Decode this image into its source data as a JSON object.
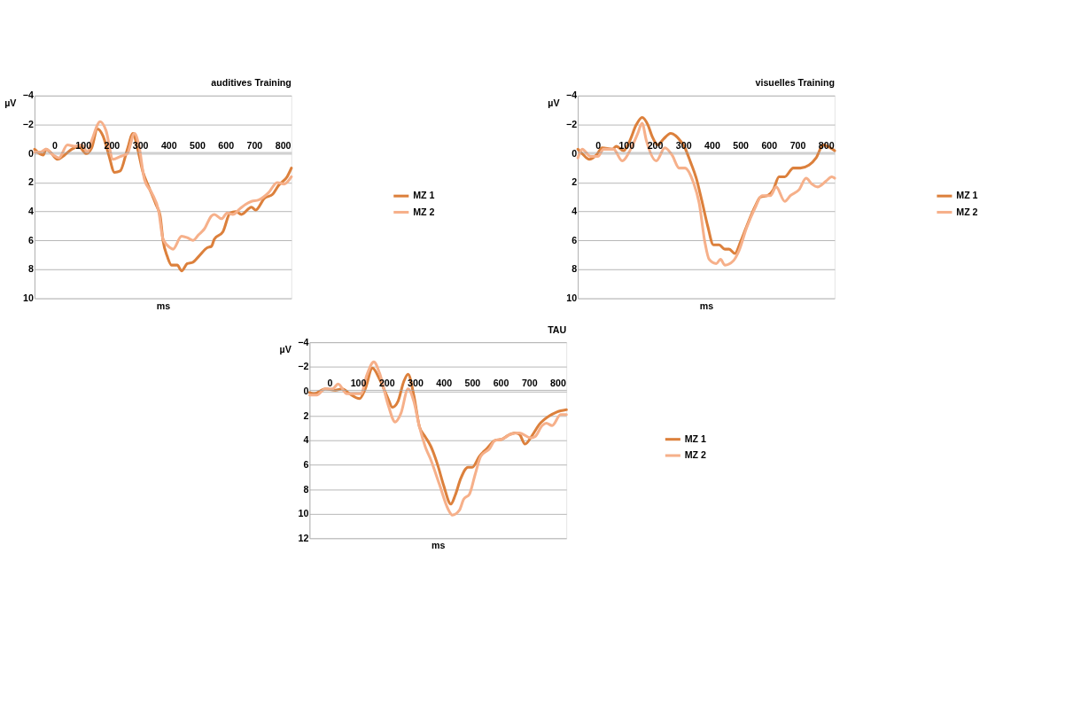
{
  "chart_data": [
    {
      "type": "line",
      "title": "auditives Training",
      "xlabel": "ms",
      "ylabel": "µV",
      "xlim": [
        -70,
        830
      ],
      "xticks": [
        0,
        100,
        200,
        300,
        400,
        500,
        600,
        700,
        800
      ],
      "ylim": [
        10,
        -4
      ],
      "yticks": [
        -4,
        -2,
        0,
        2,
        4,
        6,
        8,
        10
      ],
      "grid": "y",
      "legend": "right",
      "series": [
        {
          "name": "MZ 1",
          "color": "#dc803c",
          "x": [
            -70,
            -40,
            -30,
            -15,
            10,
            35,
            60,
            85,
            110,
            130,
            150,
            170,
            190,
            210,
            230,
            255,
            275,
            290,
            310,
            330,
            355,
            370,
            380,
            395,
            410,
            430,
            445,
            465,
            485,
            505,
            535,
            550,
            560,
            590,
            615,
            635,
            655,
            690,
            705,
            735,
            765,
            785,
            815,
            830
          ],
          "values": [
            -0.3,
            0.1,
            -0.3,
            -0.1,
            0.4,
            0.1,
            -0.3,
            -0.5,
            0,
            -0.4,
            -1.7,
            -1.2,
            0.1,
            1.3,
            1.2,
            -0.3,
            -1.4,
            -0.4,
            1.3,
            2.3,
            3.5,
            4.3,
            6.0,
            7.1,
            7.7,
            7.7,
            8.1,
            7.6,
            7.5,
            7.1,
            6.5,
            6.4,
            5.9,
            5.4,
            4.1,
            4.0,
            4.2,
            3.7,
            3.9,
            3.1,
            2.8,
            2.2,
            1.6,
            1.0
          ]
        },
        {
          "name": "MZ 2",
          "color": "#f6b08a",
          "x": [
            -70,
            -50,
            -30,
            -5,
            15,
            45,
            70,
            95,
            115,
            130,
            160,
            180,
            205,
            230,
            255,
            280,
            295,
            315,
            340,
            365,
            380,
            405,
            415,
            445,
            465,
            485,
            505,
            525,
            550,
            560,
            585,
            605,
            625,
            650,
            670,
            690,
            715,
            750,
            780,
            805,
            830
          ],
          "values": [
            -0.1,
            -0.1,
            -0.3,
            0.1,
            0.3,
            -0.6,
            -0.5,
            -0.6,
            -0.1,
            -0.9,
            -2.2,
            -1.6,
            0.4,
            0.2,
            0,
            -1.4,
            -0.6,
            1.8,
            2.7,
            4.0,
            5.9,
            6.5,
            6.6,
            5.7,
            5.8,
            6.0,
            5.6,
            5.2,
            4.3,
            4.2,
            4.5,
            4.1,
            4.2,
            3.8,
            3.5,
            3.3,
            3.2,
            2.7,
            2.0,
            2.1,
            1.6
          ]
        }
      ]
    },
    {
      "type": "line",
      "title": "visuelles Training",
      "xlabel": "ms",
      "ylabel": "µV",
      "xlim": [
        -70,
        830
      ],
      "xticks": [
        0,
        100,
        200,
        300,
        400,
        500,
        600,
        700,
        800
      ],
      "ylim": [
        10,
        -4
      ],
      "yticks": [
        -4,
        -2,
        0,
        2,
        4,
        6,
        8,
        10
      ],
      "grid": "y",
      "legend": "right",
      "series": [
        {
          "name": "MZ 1",
          "color": "#dc803c",
          "x": [
            -70,
            -55,
            -30,
            -5,
            15,
            50,
            65,
            90,
            110,
            135,
            155,
            175,
            190,
            210,
            230,
            255,
            280,
            305,
            325,
            345,
            365,
            385,
            405,
            425,
            445,
            460,
            480,
            500,
            520,
            550,
            570,
            595,
            615,
            635,
            655,
            685,
            710,
            740,
            765,
            790,
            805,
            830
          ],
          "values": [
            -0.3,
            0,
            0.4,
            0.1,
            -0.4,
            -0.3,
            -0.5,
            -0.2,
            -0.8,
            -2.0,
            -2.5,
            -2.0,
            -1.2,
            -0.6,
            -1.0,
            -1.4,
            -1.1,
            -0.4,
            0.6,
            1.7,
            3.3,
            5.0,
            6.3,
            6.3,
            6.6,
            6.6,
            6.9,
            6.1,
            5.1,
            3.7,
            3.0,
            2.9,
            2.5,
            1.6,
            1.6,
            1.0,
            1.0,
            0.8,
            0.3,
            -0.6,
            -0.5,
            -0.2
          ]
        },
        {
          "name": "MZ 2",
          "color": "#f6b08a",
          "x": [
            -70,
            -55,
            -25,
            0,
            20,
            55,
            85,
            115,
            140,
            155,
            170,
            205,
            235,
            260,
            285,
            305,
            335,
            355,
            375,
            390,
            415,
            430,
            445,
            475,
            495,
            520,
            550,
            575,
            605,
            625,
            655,
            675,
            705,
            730,
            750,
            770,
            800,
            820,
            830
          ],
          "values": [
            0.3,
            -0.3,
            0.2,
            0.2,
            -0.3,
            -0.3,
            0.5,
            -0.3,
            -1.4,
            -2.1,
            -0.9,
            0.5,
            -0.4,
            0.1,
            1.0,
            1.0,
            2.0,
            3.4,
            6.1,
            7.3,
            7.6,
            7.3,
            7.7,
            7.4,
            6.7,
            5.2,
            3.8,
            2.9,
            2.9,
            2.3,
            3.3,
            2.9,
            2.5,
            1.7,
            2.1,
            2.3,
            1.9,
            1.6,
            1.7
          ]
        }
      ]
    },
    {
      "type": "line",
      "title": "TAU",
      "xlabel": "ms",
      "ylabel": "µV",
      "xlim": [
        -70,
        830
      ],
      "xticks": [
        0,
        100,
        200,
        300,
        400,
        500,
        600,
        700,
        800
      ],
      "ylim": [
        12,
        -4
      ],
      "yticks": [
        -4,
        -2,
        0,
        2,
        4,
        6,
        8,
        10,
        12
      ],
      "grid": "y",
      "legend": "right",
      "series": [
        {
          "name": "MZ 1",
          "color": "#dc803c",
          "x": [
            -70,
            -55,
            -15,
            20,
            45,
            70,
            105,
            125,
            150,
            175,
            205,
            220,
            240,
            260,
            275,
            295,
            315,
            335,
            355,
            380,
            400,
            425,
            440,
            460,
            485,
            500,
            525,
            550,
            580,
            605,
            625,
            650,
            665,
            685,
            710,
            735,
            770,
            795,
            830
          ],
          "values": [
            0.1,
            0.2,
            -0.2,
            -0.1,
            -0.2,
            0.2,
            0.6,
            -0.2,
            -1.9,
            -1.0,
            0.6,
            1.3,
            0.8,
            -0.8,
            -1.4,
            0.3,
            2.9,
            3.7,
            4.5,
            6.1,
            7.7,
            9.2,
            8.5,
            7.1,
            6.2,
            6.2,
            5.3,
            4.7,
            4.0,
            3.9,
            3.6,
            3.4,
            3.5,
            4.3,
            3.6,
            2.7,
            2.0,
            1.7,
            1.5
          ]
        },
        {
          "name": "MZ 2",
          "color": "#f6b08a",
          "x": [
            -70,
            -45,
            -15,
            10,
            30,
            60,
            90,
            110,
            130,
            155,
            175,
            205,
            230,
            250,
            275,
            295,
            315,
            335,
            355,
            385,
            415,
            430,
            455,
            470,
            490,
            510,
            530,
            560,
            580,
            605,
            635,
            665,
            705,
            720,
            745,
            760,
            780,
            810,
            830
          ],
          "values": [
            0.3,
            0.3,
            -0.2,
            -0.2,
            -0.6,
            0.2,
            0.2,
            0.2,
            -1.3,
            -2.4,
            -1.5,
            1.1,
            2.5,
            1.8,
            -0.2,
            0.8,
            2.9,
            4.5,
            5.6,
            7.6,
            9.6,
            10.1,
            9.7,
            8.8,
            8.4,
            6.8,
            5.3,
            4.7,
            4.0,
            3.9,
            3.5,
            3.4,
            3.8,
            3.7,
            2.8,
            2.6,
            2.8,
            1.9,
            1.9
          ]
        }
      ]
    }
  ]
}
